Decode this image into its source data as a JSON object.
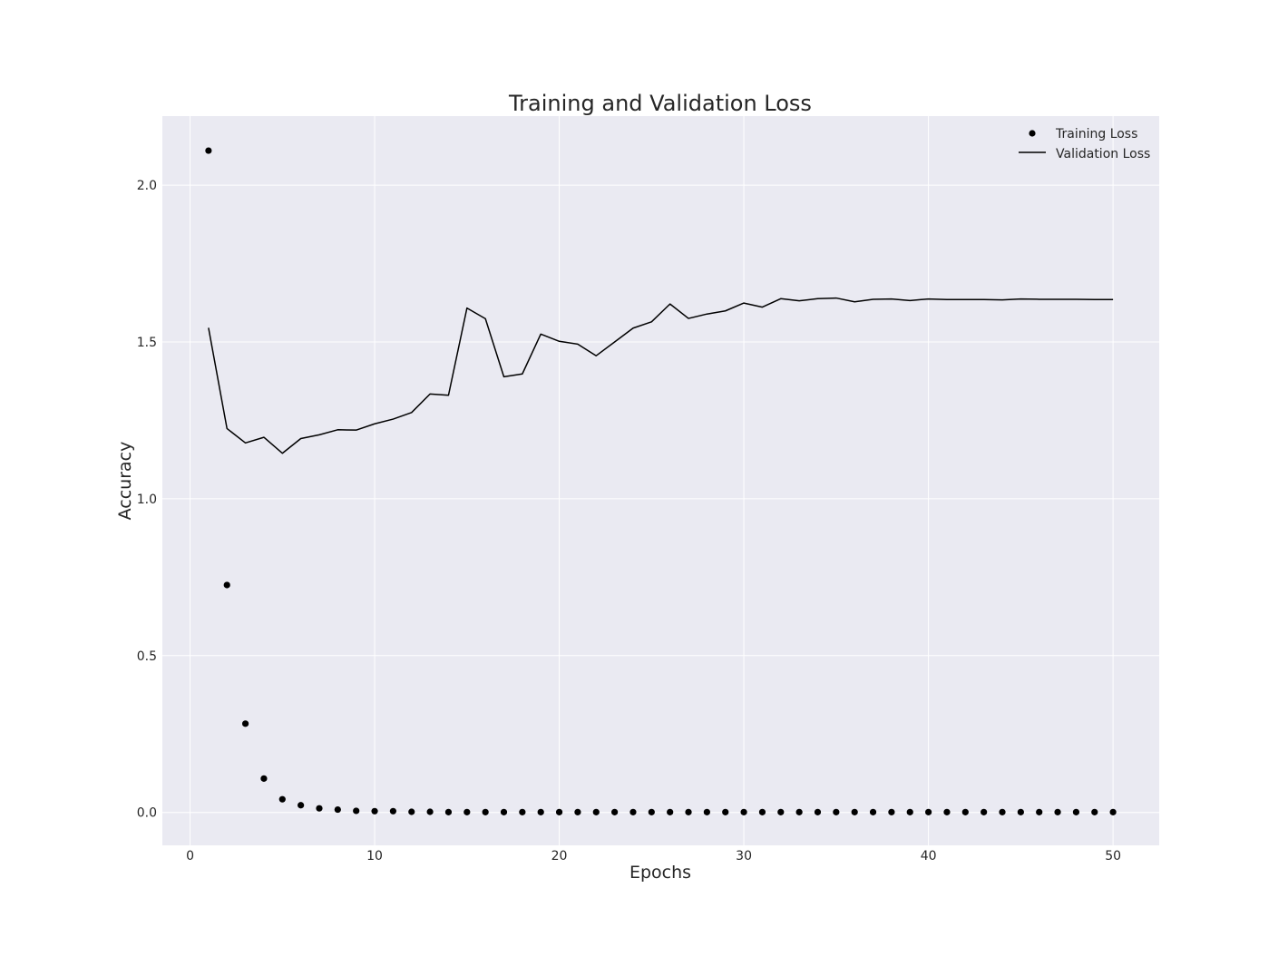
{
  "chart_data": {
    "type": "line",
    "title": "Training and Validation Loss",
    "xlabel": "Epochs",
    "ylabel": "Accuracy",
    "xlim": [
      -1.5,
      52.5
    ],
    "ylim": [
      -0.105,
      2.22
    ],
    "xticks": [
      0,
      10,
      20,
      30,
      40,
      50
    ],
    "xtick_labels": [
      "0",
      "10",
      "20",
      "30",
      "40",
      "50"
    ],
    "yticks": [
      0.0,
      0.5,
      1.0,
      1.5,
      2.0
    ],
    "ytick_labels": [
      "0.0",
      "0.5",
      "1.0",
      "1.5",
      "2.0"
    ],
    "grid": true,
    "legend_position": "top-right",
    "x": [
      1,
      2,
      3,
      4,
      5,
      6,
      7,
      8,
      9,
      10,
      11,
      12,
      13,
      14,
      15,
      16,
      17,
      18,
      19,
      20,
      21,
      22,
      23,
      24,
      25,
      26,
      27,
      28,
      29,
      30,
      31,
      32,
      33,
      34,
      35,
      36,
      37,
      38,
      39,
      40,
      41,
      42,
      43,
      44,
      45,
      46,
      47,
      48,
      49,
      50
    ],
    "series": [
      {
        "name": "Training Loss",
        "style": "points",
        "color": "#000000",
        "values": [
          2.11,
          0.725,
          0.283,
          0.108,
          0.042,
          0.023,
          0.013,
          0.009,
          0.005,
          0.004,
          0.004,
          0.002,
          0.002,
          0.001,
          0.001,
          0.001,
          0.001,
          0.001,
          0.001,
          0.001,
          0.001,
          0.001,
          0.001,
          0.001,
          0.001,
          0.001,
          0.001,
          0.001,
          0.001,
          0.001,
          0.001,
          0.001,
          0.001,
          0.001,
          0.001,
          0.001,
          0.001,
          0.001,
          0.001,
          0.001,
          0.001,
          0.001,
          0.001,
          0.001,
          0.001,
          0.001,
          0.001,
          0.001,
          0.001,
          0.001
        ]
      },
      {
        "name": "Validation Loss",
        "style": "line",
        "color": "#000000",
        "values": [
          1.545,
          1.224,
          1.178,
          1.196,
          1.145,
          1.192,
          1.204,
          1.22,
          1.219,
          1.239,
          1.254,
          1.275,
          1.334,
          1.33,
          1.608,
          1.574,
          1.389,
          1.398,
          1.525,
          1.502,
          1.493,
          1.456,
          1.5,
          1.544,
          1.564,
          1.621,
          1.575,
          1.589,
          1.599,
          1.624,
          1.611,
          1.638,
          1.631,
          1.638,
          1.64,
          1.628,
          1.636,
          1.637,
          1.632,
          1.637,
          1.635,
          1.635,
          1.635,
          1.634,
          1.637,
          1.636,
          1.636,
          1.636,
          1.635,
          1.635
        ]
      }
    ]
  },
  "colors": {
    "plot_background": "#EAEAF2",
    "grid": "#FFFFFF",
    "text": "#262626"
  }
}
